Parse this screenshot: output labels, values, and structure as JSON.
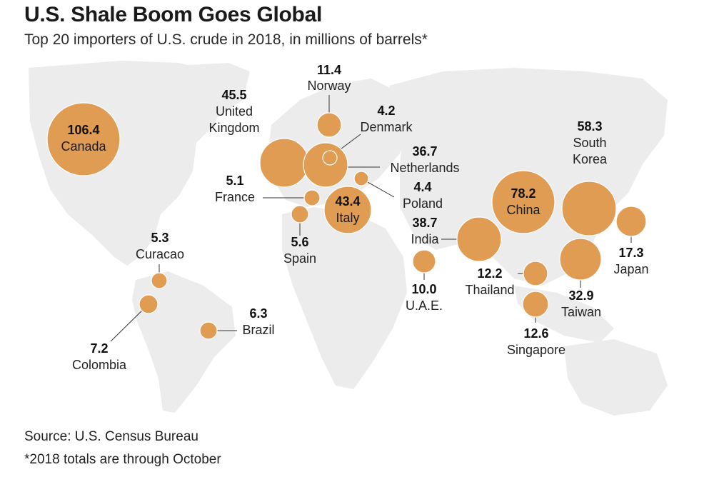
{
  "title": "U.S. Shale Boom Goes Global",
  "subtitle": "Top 20 importers of U.S. crude in 2018, in millions of barrels*",
  "source": "Source: U.S. Census Bureau",
  "footnote": "*2018 totals are through October",
  "colors": {
    "bubble": "#e09c53",
    "land": "#ececec",
    "text": "#1a1a1a"
  },
  "chart_data": {
    "type": "proportional-symbol-map",
    "title": "U.S. Shale Boom Goes Global",
    "subtitle": "Top 20 importers of U.S. crude in 2018, in millions of barrels*",
    "unit": "millions of barrels",
    "countries": [
      {
        "name": "Canada",
        "value": 106.4
      },
      {
        "name": "China",
        "value": 78.2
      },
      {
        "name": "South Korea",
        "value": 58.3
      },
      {
        "name": "United Kingdom",
        "value": 45.5
      },
      {
        "name": "Italy",
        "value": 43.4
      },
      {
        "name": "India",
        "value": 38.7
      },
      {
        "name": "Netherlands",
        "value": 36.7
      },
      {
        "name": "Taiwan",
        "value": 32.9
      },
      {
        "name": "Japan",
        "value": 17.3
      },
      {
        "name": "Singapore",
        "value": 12.6
      },
      {
        "name": "Thailand",
        "value": 12.2
      },
      {
        "name": "Norway",
        "value": 11.4
      },
      {
        "name": "U.A.E.",
        "value": 10.0
      },
      {
        "name": "Colombia",
        "value": 7.2
      },
      {
        "name": "Brazil",
        "value": 6.3
      },
      {
        "name": "Spain",
        "value": 5.6
      },
      {
        "name": "Curacao",
        "value": 5.3
      },
      {
        "name": "France",
        "value": 5.1
      },
      {
        "name": "Poland",
        "value": 4.4
      },
      {
        "name": "Denmark",
        "value": 4.2
      }
    ]
  }
}
